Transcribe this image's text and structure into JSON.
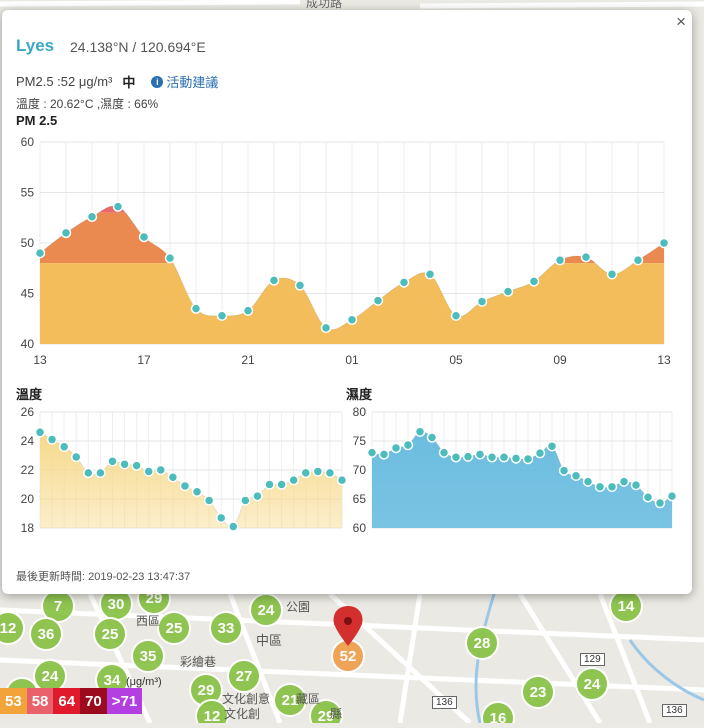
{
  "station": {
    "name": "Lyes",
    "coords": "24.138°N / 120.694°E",
    "pm_text": "PM2.5 :52 μg/m³",
    "level": "中",
    "info_link": "活動建議",
    "temp_humidity_text": "溫度 : 20.62°C ,濕度 : 66%",
    "updated_label": "最後更新時間: 2019-02-23 13:47:37",
    "close_symbol": "×"
  },
  "chart_data": [
    {
      "type": "area",
      "title": "PM 2.5",
      "x_tick_labels": [
        "13",
        "17",
        "21",
        "01",
        "05",
        "09",
        "13"
      ],
      "ylim": [
        40,
        60
      ],
      "y_ticks": [
        40,
        45,
        50,
        55,
        60
      ],
      "grid": true,
      "colors": {
        "fill_low": "#f2bd5a",
        "fill_high": "#ea8a50",
        "fill_peak": "#e86a6a",
        "marker": "#4dbcbc"
      },
      "values": [
        49.0,
        51.0,
        52.6,
        53.6,
        50.6,
        48.5,
        43.5,
        42.8,
        43.3,
        46.3,
        45.8,
        41.6,
        42.4,
        44.3,
        46.1,
        46.9,
        42.8,
        44.2,
        45.2,
        46.2,
        48.3,
        48.6,
        46.9,
        48.3,
        50.0
      ]
    },
    {
      "type": "area",
      "title": "溫度",
      "ylim": [
        18,
        26
      ],
      "y_ticks": [
        18,
        20,
        22,
        24,
        26
      ],
      "grid": true,
      "colors": {
        "fill": "#f6d98a",
        "marker": "#4dbcbc"
      },
      "values": [
        24.6,
        24.1,
        23.6,
        22.9,
        21.8,
        21.8,
        22.6,
        22.4,
        22.3,
        21.9,
        22.0,
        21.5,
        20.9,
        20.5,
        19.9,
        18.7,
        18.1,
        19.9,
        20.2,
        21.0,
        21.0,
        21.3,
        21.8,
        21.9,
        21.8,
        21.3
      ]
    },
    {
      "type": "area",
      "title": "濕度",
      "ylim": [
        60,
        80
      ],
      "y_ticks": [
        60,
        65,
        70,
        75,
        80
      ],
      "grid": true,
      "colors": {
        "fill": "#6bbde0",
        "marker": "#4dbcbc"
      },
      "values": [
        73.0,
        72.7,
        73.8,
        74.3,
        76.6,
        75.6,
        73.0,
        72.2,
        72.3,
        72.7,
        72.2,
        72.2,
        72.0,
        71.9,
        72.9,
        74.1,
        69.9,
        69.0,
        68.0,
        67.1,
        67.1,
        68.0,
        67.4,
        65.3,
        64.3,
        65.5
      ]
    }
  ],
  "map": {
    "district_label": "中區",
    "district_label2": "西區",
    "road_label": "136",
    "road_label2": "129",
    "road_label3": "136",
    "top_street": "成功路",
    "text_1": "公園",
    "text_2": "彩繪巷",
    "text_3": "文化創意",
    "text_4": "文化創",
    "text_5": "藏區",
    "text_6": "縣",
    "markers": [
      {
        "v": "7",
        "c": "#8bc34a"
      },
      {
        "v": "30",
        "c": "#8bc34a"
      },
      {
        "v": "29",
        "c": "#8bc34a"
      },
      {
        "v": "24",
        "c": "#8bc34a"
      },
      {
        "v": "12",
        "c": "#8bc34a"
      },
      {
        "v": "36",
        "c": "#8bc34a"
      },
      {
        "v": "25",
        "c": "#8bc34a"
      },
      {
        "v": "25",
        "c": "#8bc34a"
      },
      {
        "v": "33",
        "c": "#8bc34a"
      },
      {
        "v": "35",
        "c": "#8bc34a"
      },
      {
        "v": "24",
        "c": "#8bc34a"
      },
      {
        "v": "34",
        "c": "#8bc34a"
      },
      {
        "v": "29",
        "c": "#8bc34a"
      },
      {
        "v": "27",
        "c": "#8bc34a"
      },
      {
        "v": "21",
        "c": "#8bc34a"
      },
      {
        "v": "12",
        "c": "#8bc34a"
      },
      {
        "v": "29",
        "c": "#8bc34a"
      },
      {
        "v": "52",
        "c": "#f0a050"
      },
      {
        "v": "28",
        "c": "#8bc34a"
      },
      {
        "v": "23",
        "c": "#8bc34a"
      },
      {
        "v": "24",
        "c": "#8bc34a"
      },
      {
        "v": "14",
        "c": "#8bc34a"
      },
      {
        "v": "16",
        "c": "#8bc34a"
      },
      {
        "v": "34",
        "c": "#8bc34a"
      }
    ]
  },
  "legend": {
    "unit": "(μg/m³)",
    "items": [
      {
        "label": "53",
        "color": "#f2a43a"
      },
      {
        "label": "58",
        "color": "#e8616b"
      },
      {
        "label": "64",
        "color": "#e01a2c"
      },
      {
        "label": "70",
        "color": "#9c0a1d"
      },
      {
        "label": ">71",
        "color": "#b43fe0"
      }
    ]
  }
}
